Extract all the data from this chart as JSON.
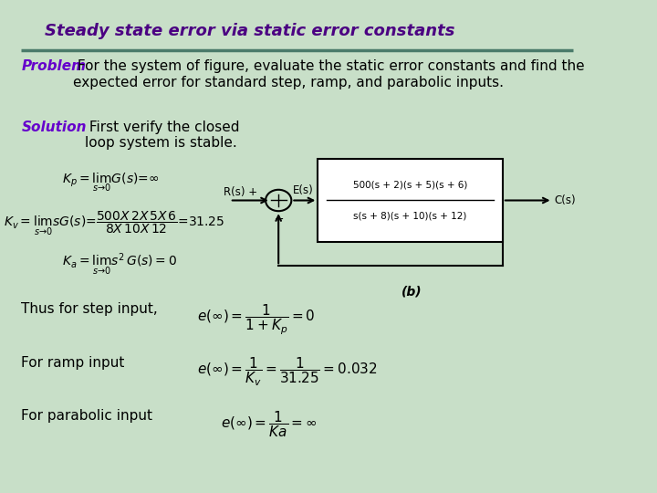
{
  "bg_color": "#c8dfc8",
  "title": "Steady state error via static error constants",
  "title_color": "#4b0082",
  "title_fontsize": 13,
  "divider_color": "#4a7a6a",
  "problem_label": "Problem",
  "problem_text": " For the system of figure, evaluate the static error constants and find the\nexpected error for standard step, ramp, and parabolic inputs.",
  "solution_label": "Solution",
  "solution_text": " First verify the closed\nloop system is stable.",
  "label_color": "#6600cc",
  "text_color": "#000000",
  "text_fontsize": 11,
  "kp_formula": "$K_p = \\lim_{s \\to 0} G(s) = \\infty$",
  "kv_formula": "$K_v = \\lim_{s \\to 0} sG(s) = \\dfrac{500X\\, 2X\\, 5X\\, 6}{8X\\, 10X\\, 12} = 31.25$",
  "ka_formula": "$K_a = \\lim_{s \\to 0} s^2 G(s) = 0$",
  "step_label": "Thus for step input,",
  "step_formula": "$e(\\infty) = \\dfrac{1}{1+K_p} = 0$",
  "ramp_label": "For ramp input",
  "ramp_formula": "$e(\\infty) = \\dfrac{1}{K_v} = \\dfrac{1}{31.25} = 0.032$",
  "parabolic_label": "For parabolic input",
  "parabolic_formula": "$e(\\infty) = \\dfrac{1}{Ka} = \\infty$",
  "block_tf_num": "500(s + 2)(s + 5)(s + 6)",
  "block_tf_den": "s(s + 8)(s + 10)(s + 12)",
  "block_label": "(b)"
}
